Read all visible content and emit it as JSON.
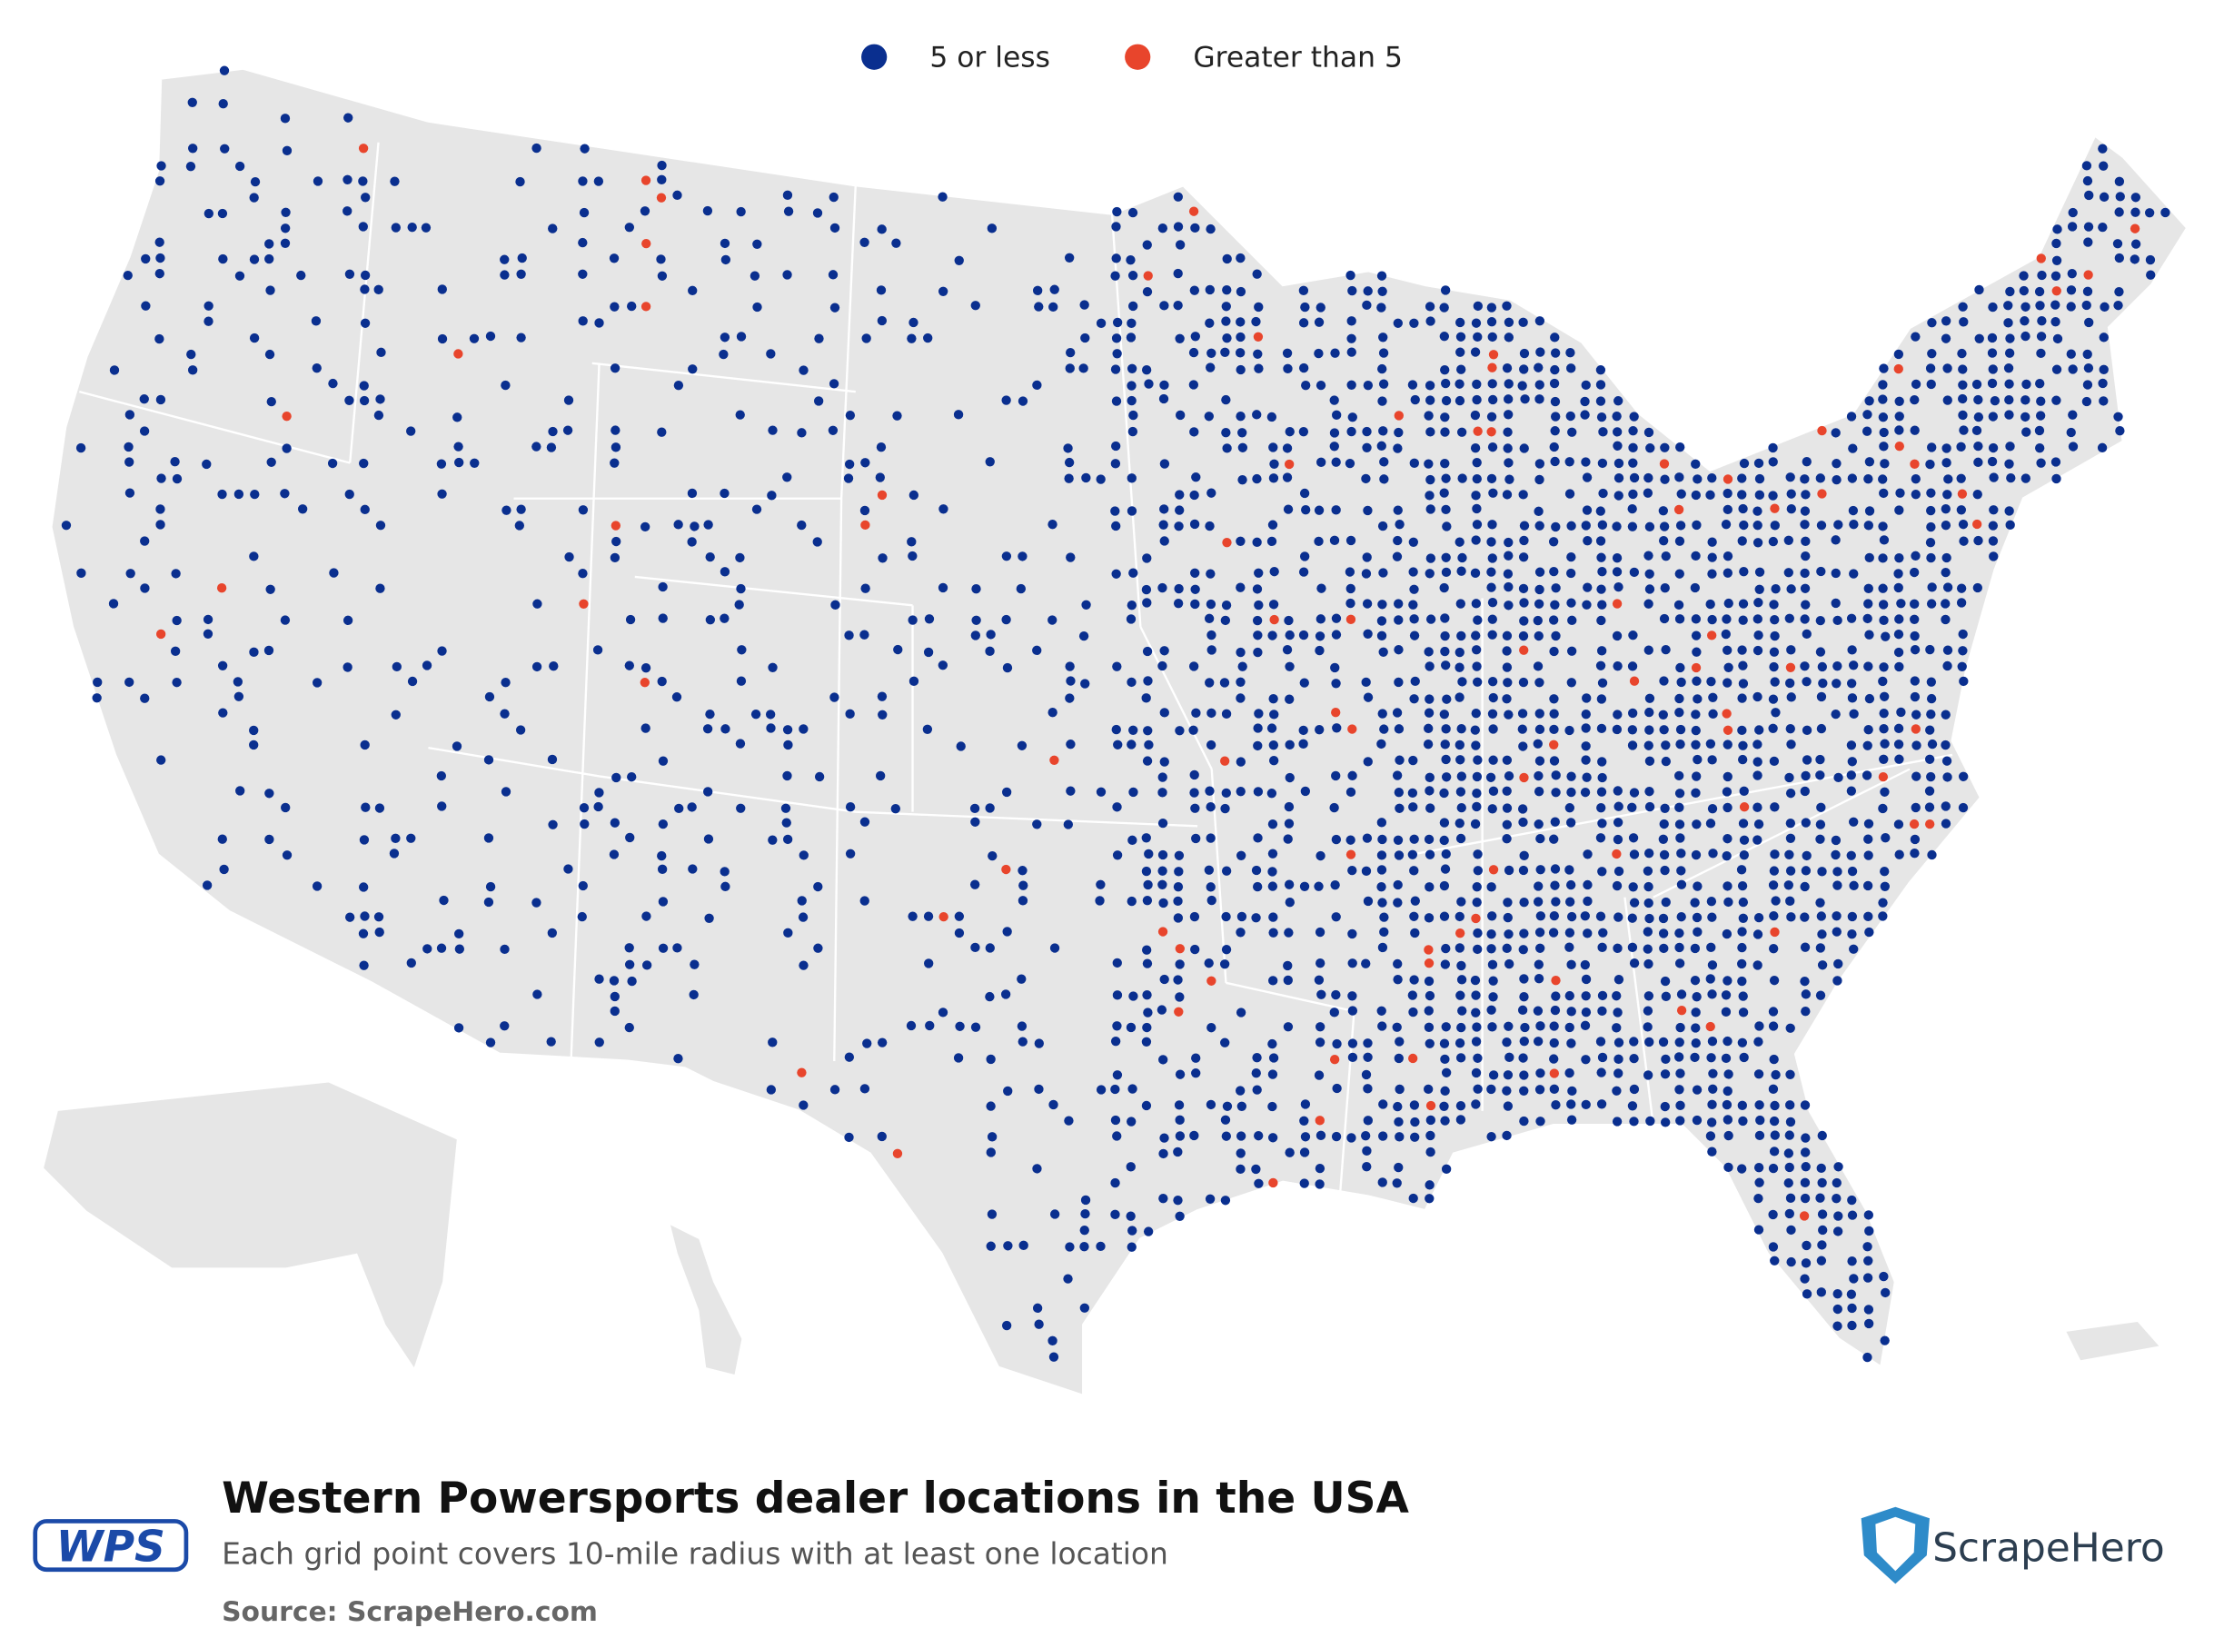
{
  "legend": [
    {
      "label": "5 or less",
      "color": "#0a2f8f"
    },
    {
      "label": "Greater than 5",
      "color": "#e8452c"
    }
  ],
  "title": "Western Powersports dealer locations in the USA",
  "subtitle": "Each grid point covers 10-mile radius with at least one location",
  "source": "Source: ScrapeHero.com",
  "logos": {
    "left": "WPS",
    "right": "ScrapeHero"
  }
}
